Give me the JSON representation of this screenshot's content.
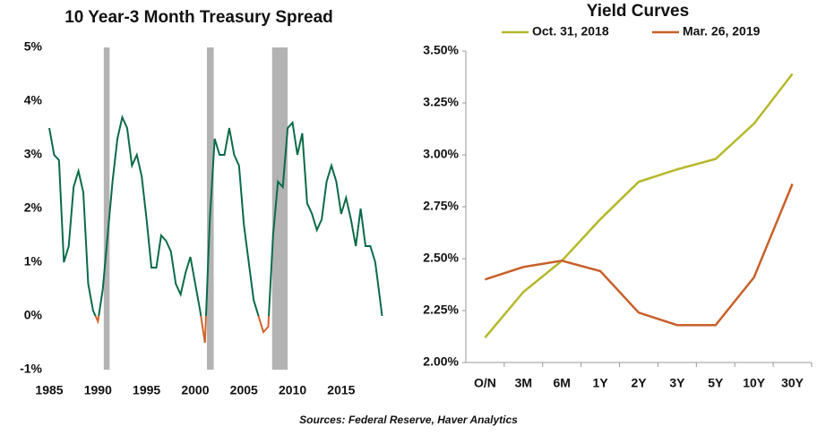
{
  "chart_data": [
    {
      "type": "line",
      "title": "10 Year-3 Month Treasury Spread",
      "x": [
        1985.0,
        1985.5,
        1986.0,
        1986.5,
        1987.0,
        1987.5,
        1988.0,
        1988.5,
        1989.0,
        1989.5,
        1990.0,
        1990.5,
        1991.0,
        1991.5,
        1992.0,
        1992.5,
        1993.0,
        1993.5,
        1994.0,
        1994.5,
        1995.0,
        1995.5,
        1996.0,
        1996.5,
        1997.0,
        1997.5,
        1998.0,
        1998.5,
        1999.0,
        1999.5,
        2000.0,
        2000.5,
        2001.0,
        2001.5,
        2002.0,
        2002.5,
        2003.0,
        2003.5,
        2004.0,
        2004.5,
        2005.0,
        2005.5,
        2006.0,
        2006.5,
        2007.0,
        2007.5,
        2008.0,
        2008.5,
        2009.0,
        2009.5,
        2010.0,
        2010.5,
        2011.0,
        2011.5,
        2012.0,
        2012.5,
        2013.0,
        2013.5,
        2014.0,
        2014.5,
        2015.0,
        2015.5,
        2016.0,
        2016.5,
        2017.0,
        2017.5,
        2018.0,
        2018.5,
        2019.0,
        2019.2
      ],
      "series": [
        {
          "values": [
            3.5,
            3.0,
            2.9,
            1.0,
            1.3,
            2.4,
            2.7,
            2.3,
            0.6,
            0.1,
            -0.1,
            0.5,
            1.5,
            2.5,
            3.3,
            3.7,
            3.5,
            2.8,
            3.0,
            2.6,
            1.8,
            0.9,
            0.9,
            1.5,
            1.4,
            1.2,
            0.6,
            0.4,
            0.8,
            1.1,
            0.6,
            0.1,
            -0.5,
            1.8,
            3.3,
            3.0,
            3.0,
            3.5,
            3.0,
            2.8,
            1.7,
            1.0,
            0.3,
            0.0,
            -0.3,
            -0.2,
            1.5,
            2.5,
            2.4,
            3.5,
            3.6,
            3.0,
            3.4,
            2.1,
            1.9,
            1.6,
            1.8,
            2.5,
            2.8,
            2.5,
            1.9,
            2.2,
            1.8,
            1.3,
            2.0,
            1.3,
            1.3,
            1.0,
            0.3,
            0.0
          ],
          "color": "#0b6b47",
          "negative_color": "#d0622a"
        }
      ],
      "recessions": [
        [
          1990.6,
          1991.2
        ],
        [
          2001.2,
          2001.9
        ],
        [
          2007.9,
          2009.5
        ]
      ],
      "recession_color": "#b3b3b3",
      "xlim": [
        1985,
        2019.8
      ],
      "xticks": [
        1985,
        1990,
        1995,
        2000,
        2005,
        2010,
        2015
      ],
      "ylim": [
        -1,
        5
      ],
      "yticks": [
        {
          "value": -1,
          "label": "-1%"
        },
        {
          "value": 0,
          "label": "0%"
        },
        {
          "value": 1,
          "label": "1%"
        },
        {
          "value": 2,
          "label": "2%"
        },
        {
          "value": 3,
          "label": "3%"
        },
        {
          "value": 4,
          "label": "4%"
        },
        {
          "value": 5,
          "label": "5%"
        }
      ]
    },
    {
      "type": "line",
      "title": "Yield Curves",
      "categories": [
        "O/N",
        "3M",
        "6M",
        "1Y",
        "2Y",
        "3Y",
        "5Y",
        "10Y",
        "30Y"
      ],
      "series": [
        {
          "name": "Oct. 31, 2018",
          "color": "#b5b82a",
          "values": [
            2.12,
            2.34,
            2.49,
            2.69,
            2.87,
            2.93,
            2.98,
            3.15,
            3.39
          ]
        },
        {
          "name": "Mar. 26, 2019",
          "color": "#c8602a",
          "values": [
            2.4,
            2.46,
            2.49,
            2.44,
            2.24,
            2.18,
            2.18,
            2.41,
            2.86
          ]
        }
      ],
      "ylim": [
        2.0,
        3.5
      ],
      "yticks": [
        {
          "value": 2.0,
          "label": "2.00%"
        },
        {
          "value": 2.25,
          "label": "2.25%"
        },
        {
          "value": 2.5,
          "label": "2.50%"
        },
        {
          "value": 2.75,
          "label": "2.75%"
        },
        {
          "value": 3.0,
          "label": "3.00%"
        },
        {
          "value": 3.25,
          "label": "3.25%"
        },
        {
          "value": 3.5,
          "label": "3.50%"
        }
      ]
    }
  ],
  "source": "Sources: Federal Reserve, Haver Analytics"
}
